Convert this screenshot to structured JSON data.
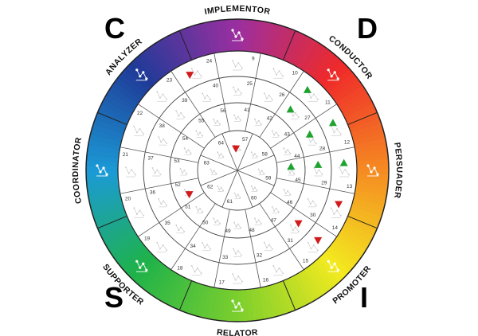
{
  "corners": {
    "c": "C",
    "d": "D",
    "s": "S",
    "i": "I"
  },
  "segments": [
    {
      "label": "IMPLEMENTOR",
      "color": "#9b2fa0"
    },
    {
      "label": "CONDUCTOR",
      "color": "#ef2a2a"
    },
    {
      "label": "PERSUADER",
      "color": "#f58a22"
    },
    {
      "label": "PROMOTER",
      "color": "#f3ea1f"
    },
    {
      "label": "RELATOR",
      "color": "#7ccf2d"
    },
    {
      "label": "SUPPORTER",
      "color": "#1fb24a"
    },
    {
      "label": "COORDINATOR",
      "color": "#1b9ad6"
    },
    {
      "label": "ANALYZER",
      "color": "#1f3b98"
    }
  ],
  "ring_numbers": {
    "outer": [
      "9",
      "10",
      "11",
      "12",
      "13",
      "14",
      "15",
      "16",
      "17",
      "18",
      "19",
      "20",
      "21",
      "22",
      "23",
      "24"
    ],
    "ring2": [
      "25",
      "26",
      "27",
      "28",
      "29",
      "30",
      "31",
      "32",
      "33",
      "34",
      "35",
      "36",
      "37",
      "38",
      "39",
      "40"
    ],
    "ring3": [
      "41",
      "42",
      "43",
      "44",
      "45",
      "46",
      "47",
      "48",
      "49",
      "50",
      "51",
      "52",
      "53",
      "54",
      "55",
      "56"
    ],
    "inner": [
      "57",
      "58",
      "59",
      "60",
      "61",
      "62",
      "63",
      "64"
    ]
  },
  "markers": {
    "green_up": [
      {
        "ring": "outer",
        "index": 2
      },
      {
        "ring": "outer",
        "index": 3
      },
      {
        "ring": "ring2",
        "index": 2
      },
      {
        "ring": "ring2",
        "index": 3
      },
      {
        "ring": "ring2",
        "index": 4
      },
      {
        "ring": "outer",
        "index": 4
      },
      {
        "ring": "ring3",
        "index": 4
      }
    ],
    "red_down": [
      {
        "ring": "outer",
        "index": 15
      },
      {
        "ring": "inner",
        "index": 0
      },
      {
        "ring": "ring3",
        "index": 11
      },
      {
        "ring": "outer",
        "index": 5
      },
      {
        "ring": "outer",
        "index": 6
      },
      {
        "ring": "ring2",
        "index": 6
      }
    ]
  }
}
